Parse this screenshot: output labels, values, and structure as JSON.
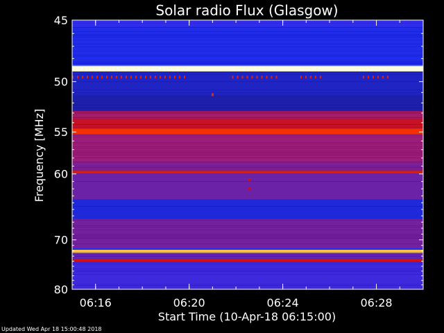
{
  "chart_data": {
    "type": "heatmap",
    "title": "Solar radio Flux (Glasgow)",
    "xlabel": "Start Time (10-Apr-18 06:15:00)",
    "ylabel": "Frequency [MHz]",
    "x_start": "06:15:00",
    "x_end": "06:30:00",
    "x_ticks": [
      "06:16",
      "06:20",
      "06:24",
      "06:28"
    ],
    "ylim": [
      45,
      80
    ],
    "y_ticks": [
      45,
      50,
      55,
      60,
      70,
      80
    ],
    "y_scale": "reciprocal",
    "colormap": [
      "#000066",
      "#1e1ea0",
      "#2030ff",
      "#6a22a8",
      "#9b1e78",
      "#d01010",
      "#ff3a00",
      "#ffc040",
      "#ffffe0"
    ],
    "background_level": 0.25,
    "bands": [
      {
        "freq_range": [
          45.0,
          45.5
        ],
        "level": 0.28
      },
      {
        "freq_range": [
          45.5,
          48.5
        ],
        "level": 0.22
      },
      {
        "freq_range": [
          48.6,
          49.1
        ],
        "level": 1.0
      },
      {
        "freq_range": [
          49.1,
          51.2
        ],
        "level": 0.17
      },
      {
        "freq_range": [
          51.2,
          52.8
        ],
        "level": 0.14
      },
      {
        "freq_range": [
          52.8,
          53.6
        ],
        "level": 0.52
      },
      {
        "freq_range": [
          53.6,
          54.6
        ],
        "level": 0.6
      },
      {
        "freq_range": [
          54.6,
          55.3
        ],
        "level": 0.72
      },
      {
        "freq_range": [
          55.3,
          58.5
        ],
        "level": 0.5
      },
      {
        "freq_range": [
          58.5,
          59.6
        ],
        "level": 0.42
      },
      {
        "freq_range": [
          59.6,
          59.9
        ],
        "level": 0.68
      },
      {
        "freq_range": [
          59.9,
          63.5
        ],
        "level": 0.38
      },
      {
        "freq_range": [
          63.5,
          66.5
        ],
        "level": 0.2
      },
      {
        "freq_range": [
          66.5,
          71.5
        ],
        "level": 0.4
      },
      {
        "freq_range": [
          71.8,
          72.4
        ],
        "level": 0.88
      },
      {
        "freq_range": [
          72.4,
          73.6
        ],
        "level": 0.36
      },
      {
        "freq_range": [
          73.6,
          74.2
        ],
        "level": 0.62
      },
      {
        "freq_range": [
          74.2,
          80.0
        ],
        "level": 0.3
      }
    ],
    "time_series_bursts": [
      {
        "time_range": [
          "06:15:00",
          "06:19:50"
        ],
        "freq": 49.6,
        "level": 0.68
      },
      {
        "time_range": [
          "06:21:50",
          "06:23:50"
        ],
        "freq": 49.6,
        "level": 0.68
      },
      {
        "time_range": [
          "06:24:45",
          "06:25:40"
        ],
        "freq": 49.6,
        "level": 0.68
      },
      {
        "time_range": [
          "06:27:25",
          "06:28:35"
        ],
        "freq": 49.6,
        "level": 0.68
      }
    ],
    "spots": [
      {
        "time": "06:21:00",
        "freq": 51.2,
        "level": 0.7
      },
      {
        "time": "06:22:35",
        "freq": 60.8,
        "level": 0.62
      },
      {
        "time": "06:22:35",
        "freq": 62.0,
        "level": 0.62
      }
    ]
  },
  "footer": {
    "updated_text": "Updated Wed Apr 18 15:00:48 2018"
  }
}
